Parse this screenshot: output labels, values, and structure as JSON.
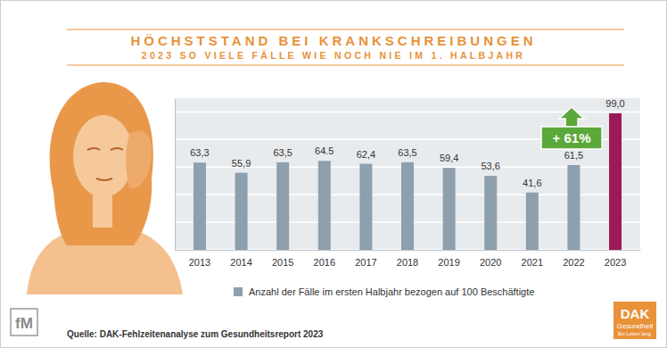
{
  "chart_data": {
    "type": "bar",
    "title": "HÖCHSTSTAND BEI KRANKSCHREIBUNGEN",
    "subtitle": "2023 SO VIELE FÄLLE WIE NOCH NIE IM 1. HALBJAHR",
    "categories": [
      "2013",
      "2014",
      "2015",
      "2016",
      "2017",
      "2018",
      "2019",
      "2020",
      "2021",
      "2022",
      "2023"
    ],
    "series": [
      {
        "name": "Anzahl der Fälle im ersten Halbjahr bezogen auf 100 Beschäftigte",
        "color": "#8e9fad",
        "colors": [
          "#8e9fad",
          "#8e9fad",
          "#8e9fad",
          "#8e9fad",
          "#8e9fad",
          "#8e9fad",
          "#8e9fad",
          "#8e9fad",
          "#8e9fad",
          "#8e9fad",
          "#9c1a57"
        ],
        "values": [
          63.3,
          55.9,
          63.5,
          64.5,
          62.4,
          63.5,
          59.4,
          53.6,
          41.6,
          61.5,
          99.0
        ],
        "value_labels": [
          "63,3",
          "55,9",
          "63,5",
          "64.5",
          "62,4",
          "63,5",
          "59,4",
          "53,6",
          "41,6",
          "61,5",
          "99,0"
        ]
      }
    ],
    "ylim": [
      0,
      110
    ],
    "yticks": [
      0,
      20,
      40,
      60,
      80,
      100
    ],
    "grid": true,
    "tick_labels": "x",
    "data_labels": true,
    "legend": "bottom",
    "annotation": "+ 61%",
    "source": "Quelle: DAK-Fehlzeitenanalyse zum Gesundheitsreport 2023",
    "logos": [
      "fM",
      "DAK",
      "Gesundheit",
      "Ein Leben lang."
    ]
  }
}
